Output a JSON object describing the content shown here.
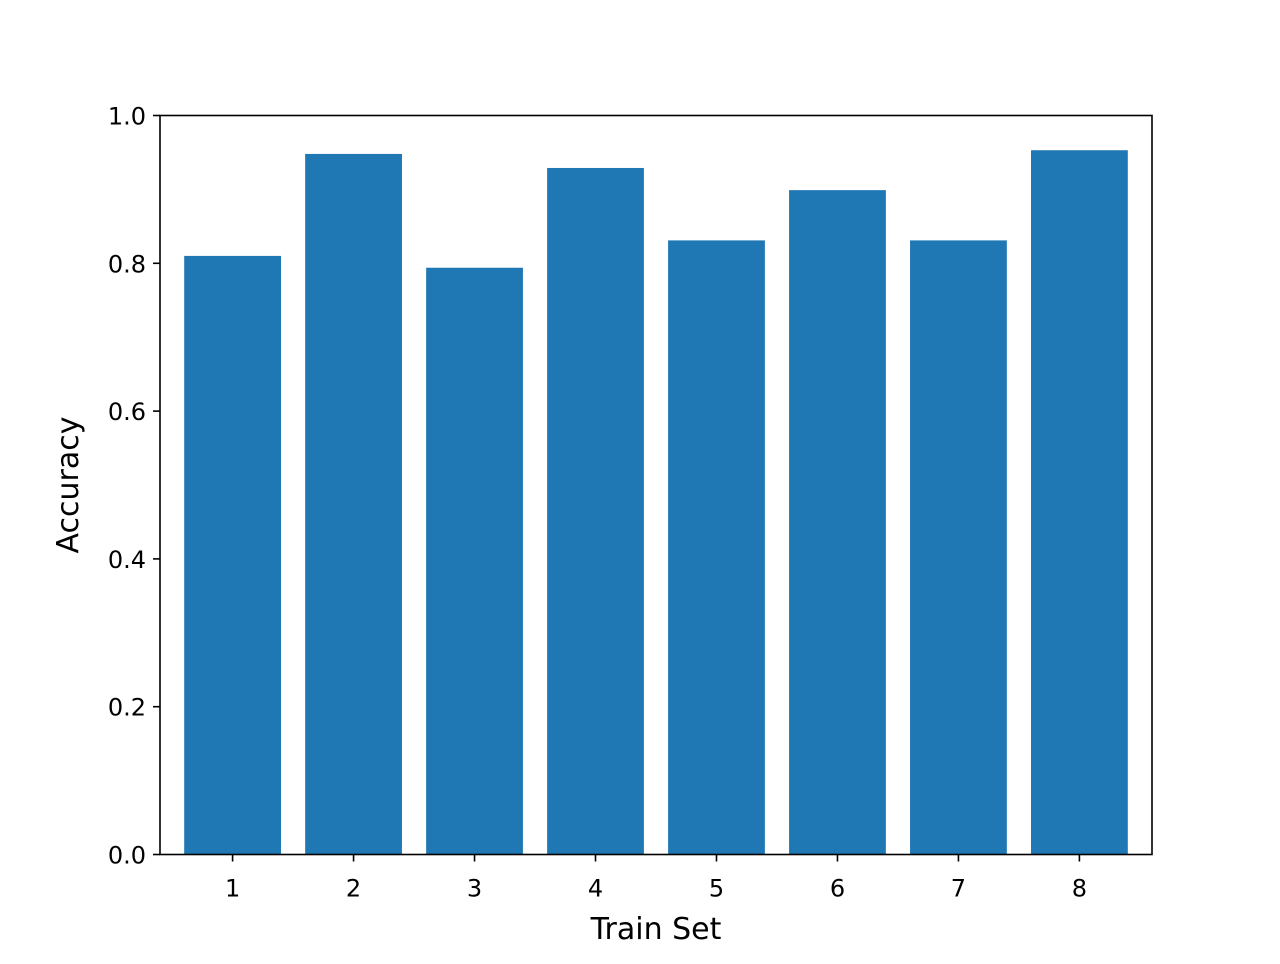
{
  "chart_data": {
    "type": "bar",
    "title": "",
    "xlabel": "Train Set",
    "ylabel": "Accuracy",
    "categories": [
      "1",
      "2",
      "3",
      "4",
      "5",
      "6",
      "7",
      "8"
    ],
    "values": [
      0.81,
      0.948,
      0.794,
      0.929,
      0.831,
      0.899,
      0.831,
      0.953
    ],
    "ylim": [
      0.0,
      1.0
    ],
    "yticks": [
      "0.0",
      "0.2",
      "0.4",
      "0.6",
      "0.8",
      "1.0"
    ],
    "grid": false,
    "legend": "none",
    "bar_color": "#1f77b4"
  }
}
